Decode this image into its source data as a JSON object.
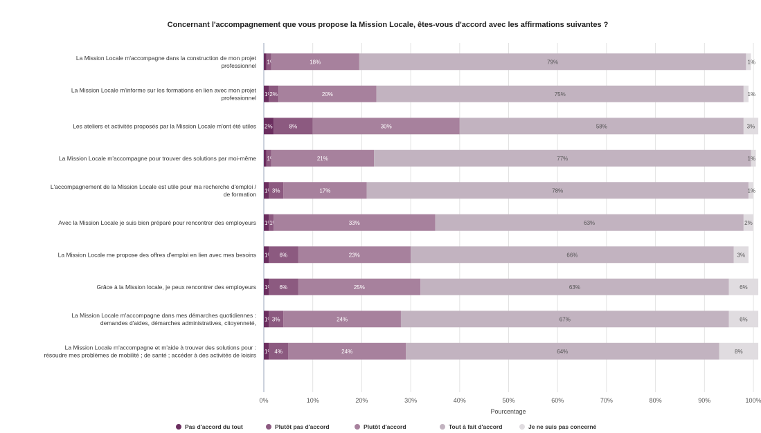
{
  "chart_data": {
    "type": "bar",
    "orientation": "horizontal",
    "stacked": true,
    "title": "Concernant l'accompagnement que vous propose la Mission Locale, êtes-vous d'accord avec les affirmations suivantes ?",
    "xlabel": "Pourcentage",
    "ylabel": "",
    "xlim": [
      0,
      100
    ],
    "xticks": [
      "0%",
      "10%",
      "20%",
      "30%",
      "40%",
      "50%",
      "60%",
      "70%",
      "80%",
      "90%",
      "100%"
    ],
    "legend_position": "bottom",
    "categories": [
      [
        "La Mission Locale m'accompagne dans la construction de mon projet",
        "professionnel"
      ],
      [
        "La Mission Locale m'informe sur les formations en lien avec mon projet",
        "professionnel"
      ],
      [
        "Les ateliers et activités proposés par la Mission Locale m'ont été utiles"
      ],
      [
        "La Mission Locale m'accompagne pour trouver des solutions par moi-même"
      ],
      [
        "L'accompagnement de la Mission Locale est utile pour ma recherche d'emploi /",
        "de formation"
      ],
      [
        "Avec la Mission Locale je suis bien préparé pour rencontrer des employeurs"
      ],
      [
        "La Mission Locale me propose des offres d'emploi en lien avec mes besoins"
      ],
      [
        "Grâce à la Mission locale, je peux rencontrer des employeurs"
      ],
      [
        "La Mission Locale m'accompagne dans mes démarches quotidiennes :",
        "demandes d'aides, démarches administratives, citoyenneté,"
      ],
      [
        "La Mission Locale m'accompagne et m'aide à trouver des solutions pour :",
        "résoudre mes problèmes de mobilité ; de santé ; accéder à des activités de loisirs"
      ]
    ],
    "series": [
      {
        "name": "Pas d'accord du tout",
        "color": "#6b2e5f",
        "values": [
          0.5,
          1,
          2,
          0.5,
          1,
          1,
          1,
          1,
          1,
          1
        ]
      },
      {
        "name": "Plutôt pas d'accord",
        "color": "#8c5a80",
        "values": [
          1,
          2,
          8,
          1,
          3,
          1,
          6,
          6,
          3,
          4
        ]
      },
      {
        "name": "Plutôt d'accord",
        "color": "#a7819d",
        "values": [
          18,
          20,
          30,
          21,
          17,
          33,
          23,
          25,
          24,
          24
        ]
      },
      {
        "name": "Tout à fait d'accord",
        "color": "#c2b3c0",
        "values": [
          79,
          75,
          58,
          77,
          78,
          63,
          66,
          63,
          67,
          64
        ]
      },
      {
        "name": "Je ne suis pas concerné",
        "color": "#e0dce0",
        "values": [
          1,
          1,
          3,
          1,
          1,
          2,
          3,
          6,
          6,
          8
        ]
      }
    ],
    "labels": [
      [
        "",
        "1%",
        "18%",
        "79%",
        "1%"
      ],
      [
        "1%",
        "2%",
        "20%",
        "75%",
        "1%"
      ],
      [
        "2%",
        "8%",
        "30%",
        "58%",
        "3%"
      ],
      [
        "",
        "1%",
        "21%",
        "77%",
        "1%"
      ],
      [
        "1%",
        "3%",
        "17%",
        "78%",
        "1%"
      ],
      [
        "1%",
        "1%",
        "33%",
        "63%",
        "2%"
      ],
      [
        "1%",
        "6%",
        "23%",
        "66%",
        "3%"
      ],
      [
        "1%",
        "6%",
        "25%",
        "63%",
        "6%"
      ],
      [
        "1%",
        "3%",
        "24%",
        "67%",
        "6%"
      ],
      [
        "1%",
        "4%",
        "24%",
        "64%",
        "8%"
      ]
    ]
  }
}
